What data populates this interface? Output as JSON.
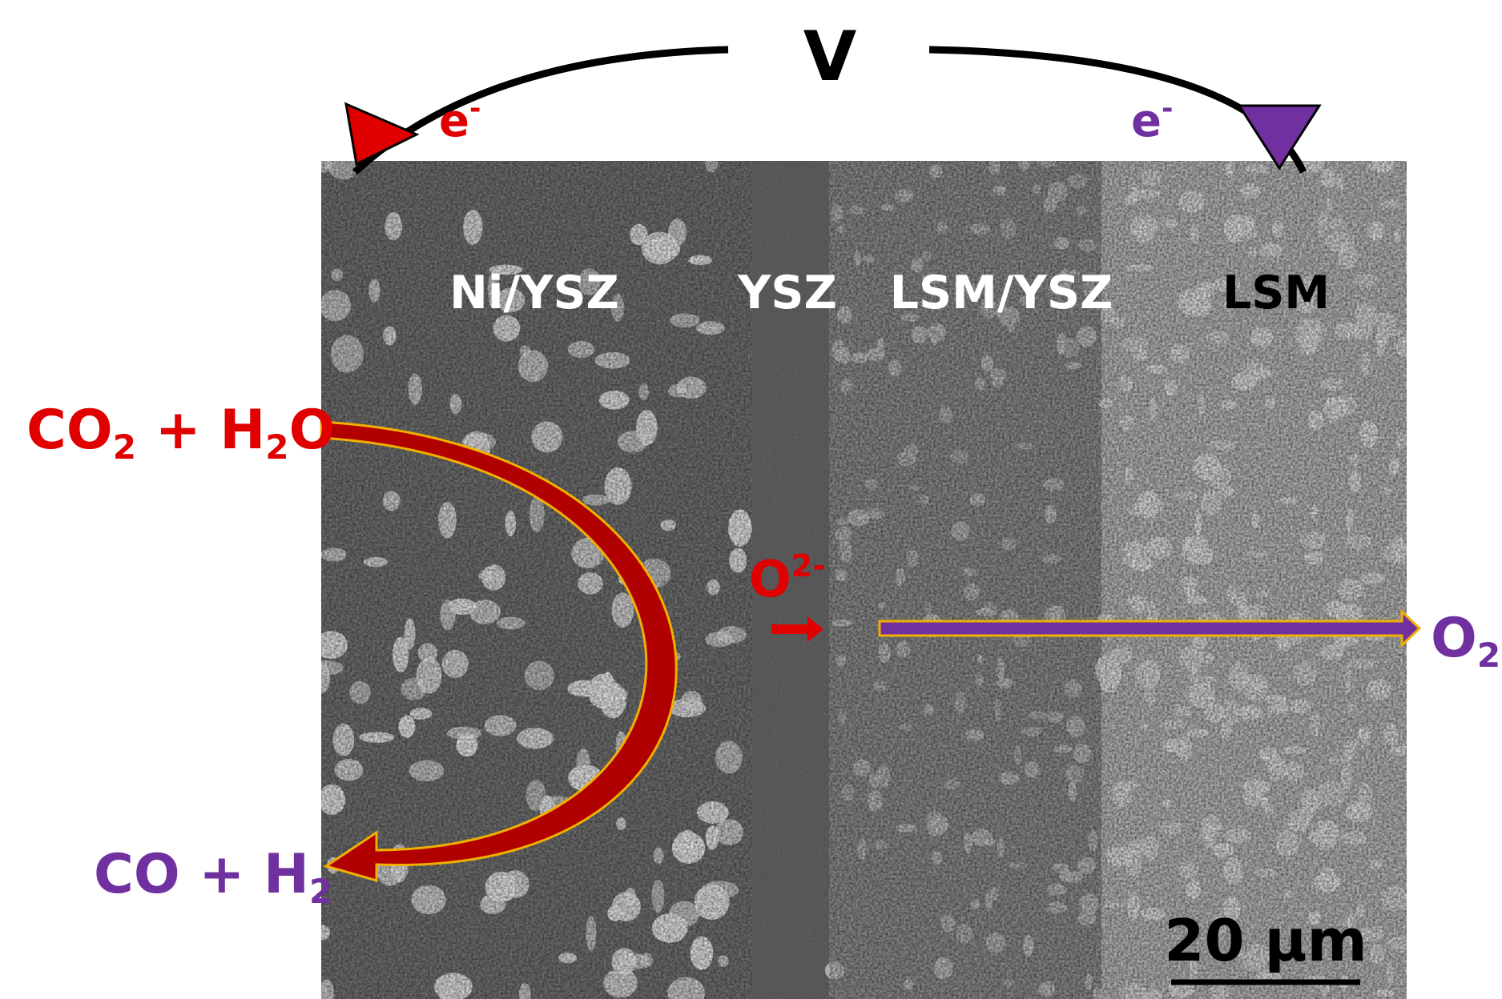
{
  "voltage": "V",
  "labels": [
    {
      "segments": [
        {
          "text": "e"
        },
        {
          "text": "-",
          "sup": true
        }
      ]
    },
    {
      "segments": [
        {
          "text": "e"
        },
        {
          "text": "-",
          "sup": true
        }
      ]
    },
    {
      "segments": [
        {
          "text": "Ni/YSZ"
        }
      ]
    },
    {
      "segments": [
        {
          "text": "YSZ"
        }
      ]
    },
    {
      "segments": [
        {
          "text": "LSM/YSZ"
        }
      ]
    },
    {
      "segments": [
        {
          "text": "LSM"
        }
      ]
    },
    {
      "segments": [
        {
          "text": "CO"
        },
        {
          "text": "2",
          "sub": true
        },
        {
          "text": " + H"
        },
        {
          "text": "2",
          "sub": true
        },
        {
          "text": "O"
        }
      ]
    },
    {
      "segments": [
        {
          "text": "CO + H"
        },
        {
          "text": "2",
          "sub": true
        }
      ]
    },
    {
      "segments": [
        {
          "text": "O"
        },
        {
          "text": "2-",
          "sup": true
        }
      ]
    },
    {
      "segments": [
        {
          "text": "O"
        },
        {
          "text": "2",
          "sub": true
        }
      ]
    },
    {
      "segments": [
        {
          "text": "20 μm"
        }
      ]
    }
  ]
}
